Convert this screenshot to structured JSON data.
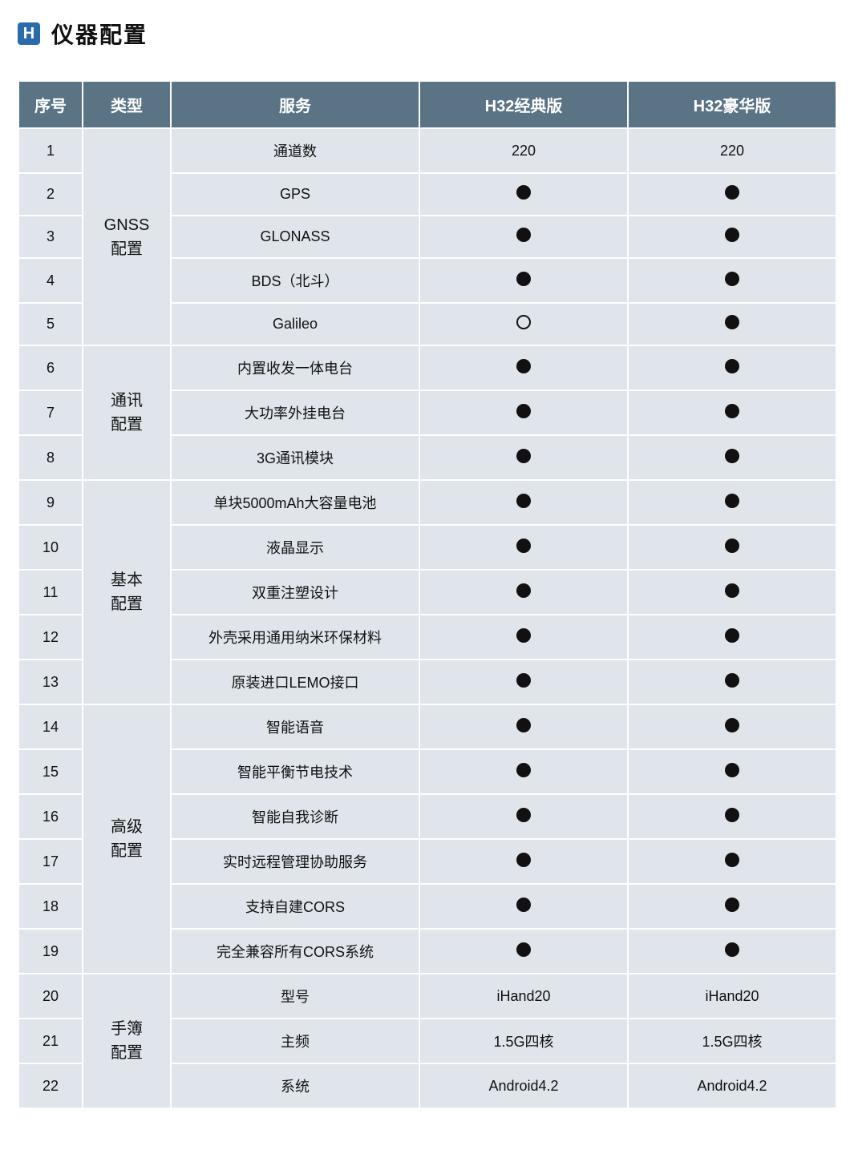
{
  "header": {
    "badge": "H",
    "title": "仪器配置"
  },
  "table": {
    "columns": [
      "序号",
      "类型",
      "服务",
      "H32经典版",
      "H32豪华版"
    ],
    "header_bg": "#5a7385",
    "cell_bg": "#dfe5eb",
    "border_color": "#ffffff",
    "groups": [
      {
        "category": "GNSS\n配置",
        "rows": [
          {
            "seq": "1",
            "service": "通道数",
            "a": "220",
            "b": "220"
          },
          {
            "seq": "2",
            "service": "GPS",
            "a": "●",
            "b": "●"
          },
          {
            "seq": "3",
            "service": "GLONASS",
            "a": "●",
            "b": "●"
          },
          {
            "seq": "4",
            "service": "BDS（北斗）",
            "a": "●",
            "b": "●"
          },
          {
            "seq": "5",
            "service": "Galileo",
            "a": "○",
            "b": "●"
          }
        ]
      },
      {
        "category": "通讯\n配置",
        "rows": [
          {
            "seq": "6",
            "service": "内置收发一体电台",
            "a": "●",
            "b": "●"
          },
          {
            "seq": "7",
            "service": "大功率外挂电台",
            "a": "●",
            "b": "●"
          },
          {
            "seq": "8",
            "service": "3G通讯模块",
            "a": "●",
            "b": "●"
          }
        ]
      },
      {
        "category": "基本\n配置",
        "rows": [
          {
            "seq": "9",
            "service": "单块5000mAh大容量电池",
            "a": "●",
            "b": "●"
          },
          {
            "seq": "10",
            "service": "液晶显示",
            "a": "●",
            "b": "●"
          },
          {
            "seq": "11",
            "service": "双重注塑设计",
            "a": "●",
            "b": "●"
          },
          {
            "seq": "12",
            "service": "外壳采用通用纳米环保材料",
            "a": "●",
            "b": "●"
          },
          {
            "seq": "13",
            "service": "原装进口LEMO接口",
            "a": "●",
            "b": "●"
          }
        ]
      },
      {
        "category": "高级\n配置",
        "rows": [
          {
            "seq": "14",
            "service": "智能语音",
            "a": "●",
            "b": "●"
          },
          {
            "seq": "15",
            "service": "智能平衡节电技术",
            "a": "●",
            "b": "●"
          },
          {
            "seq": "16",
            "service": "智能自我诊断",
            "a": "●",
            "b": "●"
          },
          {
            "seq": "17",
            "service": "实时远程管理协助服务",
            "a": "●",
            "b": "●"
          },
          {
            "seq": "18",
            "service": "支持自建CORS",
            "a": "●",
            "b": "●"
          },
          {
            "seq": "19",
            "service": "完全兼容所有CORS系统",
            "a": "●",
            "b": "●"
          }
        ]
      },
      {
        "category": "手簿\n配置",
        "rows": [
          {
            "seq": "20",
            "service": "型号",
            "a": "iHand20",
            "b": "iHand20"
          },
          {
            "seq": "21",
            "service": "主频",
            "a": "1.5G四核",
            "b": "1.5G四核"
          },
          {
            "seq": "22",
            "service": "系统",
            "a": "Android4.2",
            "b": "Android4.2"
          }
        ]
      }
    ]
  }
}
